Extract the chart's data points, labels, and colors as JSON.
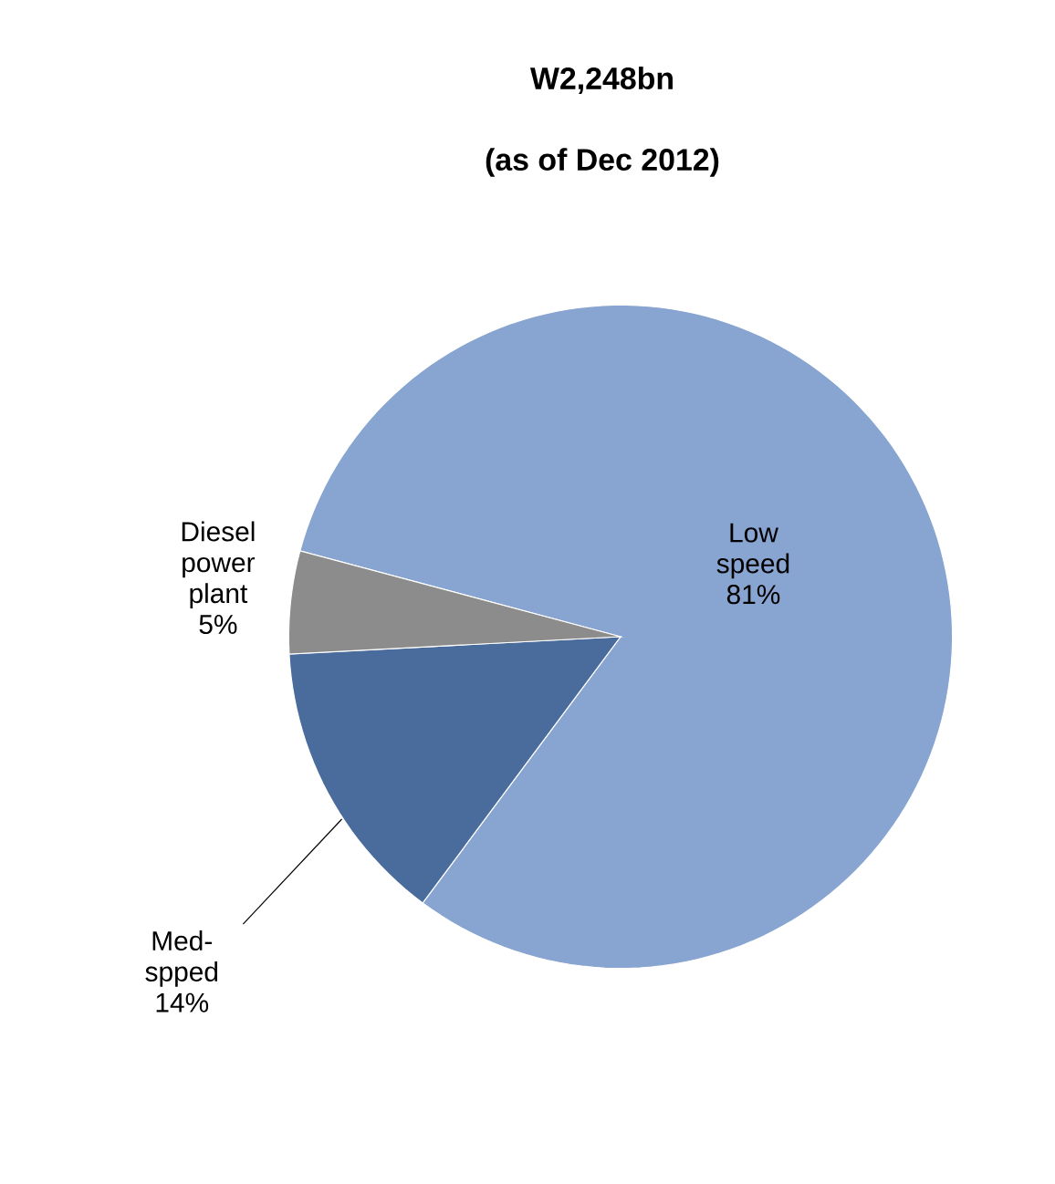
{
  "chart_data": {
    "type": "pie",
    "title": "W2,248bn",
    "subtitle": "(as of Dec 2012)",
    "categories": [
      "Low speed",
      "Med-spped",
      "Diesel power plant"
    ],
    "values": [
      81,
      14,
      5
    ],
    "colors": [
      "#88a4d0",
      "#4a6c9c",
      "#8c8c8c"
    ],
    "value_labels": [
      "81%",
      "14%",
      "5%"
    ]
  }
}
